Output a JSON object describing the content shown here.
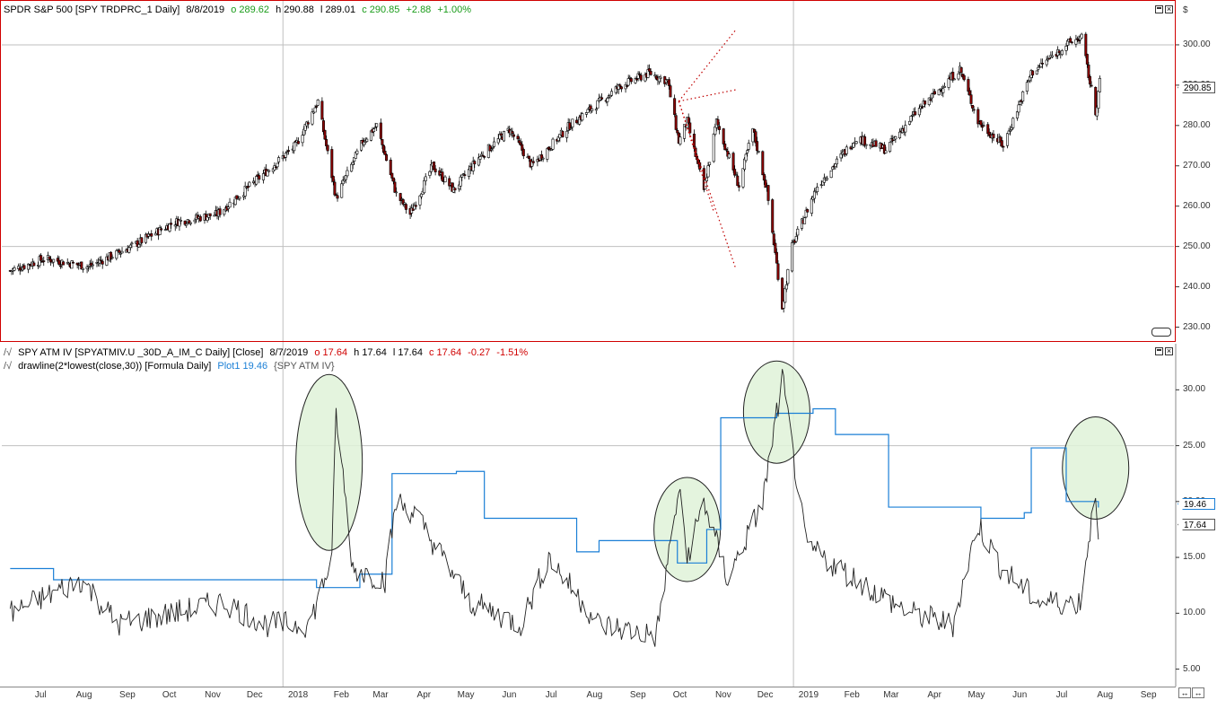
{
  "price_header": {
    "title": "SPDR S&P 500 [SPY TRDPRC_1 Daily]",
    "date": "8/8/2019",
    "open": "o 289.62",
    "high": "h 290.88",
    "low": "l 289.01",
    "close": "c 290.85",
    "change": "+2.88",
    "pct": "+1.00%"
  },
  "iv_header": {
    "title": "SPY ATM IV [SPYATMIV.U _30D_A_IM_C Daily] [Close]",
    "date": "8/7/2019",
    "open": "o 17.64",
    "high": "h 17.64",
    "low": "l 17.64",
    "close": "c 17.64",
    "change": "-0.27",
    "pct": "-1.51%"
  },
  "formula_header": {
    "title": "drawline(2*lowest(close,30)) [Formula Daily]",
    "plot_label": "Plot1 19.46",
    "source": "{SPY ATM IV}"
  },
  "price_axis": {
    "unit": "$",
    "ticks": [
      "300.00",
      "290.00",
      "280.00",
      "270.00",
      "260.00",
      "250.00",
      "240.00",
      "230.00"
    ],
    "last_value": "290.85"
  },
  "iv_axis": {
    "ticks": [
      "30.00",
      "25.00",
      "20.00",
      "15.00",
      "10.00",
      "5.00"
    ],
    "plot1_value": "19.46",
    "iv_value": "17.64"
  },
  "x_axis": {
    "labels": [
      "Jul",
      "Aug",
      "Sep",
      "Oct",
      "Nov",
      "Dec",
      "2018",
      "Feb",
      "Mar",
      "Apr",
      "May",
      "Jun",
      "Jul",
      "Aug",
      "Sep",
      "Oct",
      "Nov",
      "Dec",
      "2019",
      "Feb",
      "Mar",
      "Apr",
      "May",
      "Jun",
      "Jul",
      "Aug",
      "Sep"
    ]
  },
  "colors": {
    "up_candle": "#000000",
    "down_candle": "#8b0000",
    "iv_line": "#222222",
    "plot1_line": "#1a7fd6",
    "pane_border": "#d00000",
    "highlight_fill": "#dff2d8"
  },
  "chart_data": [
    {
      "type": "line",
      "title": "SPDR S&P 500 [SPY TRDPRC_1 Daily]",
      "ylabel": "$",
      "ylim": [
        227,
        308
      ],
      "x": [
        "2017-06-20",
        "2017-07-15",
        "2017-08-15",
        "2017-09-15",
        "2017-10-15",
        "2017-11-15",
        "2017-12-15",
        "2018-01-10",
        "2018-01-26",
        "2018-02-08",
        "2018-02-27",
        "2018-03-09",
        "2018-03-23",
        "2018-04-02",
        "2018-04-18",
        "2018-05-03",
        "2018-05-21",
        "2018-06-12",
        "2018-06-28",
        "2018-07-25",
        "2018-08-31",
        "2018-09-20",
        "2018-10-03",
        "2018-10-11",
        "2018-10-17",
        "2018-10-29",
        "2018-11-07",
        "2018-11-23",
        "2018-12-03",
        "2018-12-13",
        "2018-12-24",
        "2018-12-31",
        "2019-01-18",
        "2019-02-15",
        "2019-03-08",
        "2019-03-29",
        "2019-04-30",
        "2019-05-13",
        "2019-05-31",
        "2019-06-20",
        "2019-07-15",
        "2019-07-26",
        "2019-08-05",
        "2019-08-08"
      ],
      "values": [
        244,
        247,
        245,
        250,
        256,
        258,
        267,
        275,
        286,
        262,
        276,
        280,
        263,
        258,
        270,
        264,
        272,
        279,
        270,
        280,
        290,
        293,
        291,
        276,
        281,
        264,
        281,
        265,
        279,
        264,
        235,
        250,
        265,
        277,
        274,
        283,
        294,
        281,
        275,
        293,
        300,
        302,
        283,
        290.85
      ]
    },
    {
      "type": "line",
      "title": "SPY ATM IV [SPYATMIV.U _30D_A_IM_C Daily] [Close]",
      "ylim": [
        4,
        33
      ],
      "x": [
        "2017-06-20",
        "2017-08-10",
        "2017-09-05",
        "2017-10-15",
        "2017-11-20",
        "2017-12-20",
        "2018-01-20",
        "2018-02-05",
        "2018-02-08",
        "2018-02-20",
        "2018-03-15",
        "2018-03-23",
        "2018-04-05",
        "2018-05-15",
        "2018-06-20",
        "2018-07-10",
        "2018-08-15",
        "2018-09-25",
        "2018-10-11",
        "2018-10-17",
        "2018-10-29",
        "2018-11-15",
        "2018-12-10",
        "2018-12-24",
        "2019-01-10",
        "2019-02-15",
        "2019-03-25",
        "2019-04-25",
        "2019-05-13",
        "2019-05-30",
        "2019-06-25",
        "2019-07-25",
        "2019-08-05",
        "2019-08-07"
      ],
      "values": [
        10,
        13,
        9,
        10,
        11,
        9,
        9,
        15,
        28,
        14,
        13,
        20,
        19,
        11,
        9,
        15,
        9,
        8,
        21,
        15,
        20,
        13,
        20,
        31,
        16,
        13,
        10,
        9,
        18,
        14,
        11,
        11,
        21,
        17.64
      ]
    },
    {
      "type": "line",
      "title": "drawline(2*lowest(close,30))",
      "ylim": [
        4,
        33
      ],
      "x": [
        "2017-06-20",
        "2017-07-20",
        "2017-07-21",
        "2018-01-25",
        "2018-02-25",
        "2018-03-20",
        "2018-05-05",
        "2018-05-25",
        "2018-07-30",
        "2018-08-15",
        "2018-10-10",
        "2018-10-31",
        "2018-11-10",
        "2018-12-20",
        "2019-01-15",
        "2019-01-31",
        "2019-03-10",
        "2019-05-15",
        "2019-06-15",
        "2019-06-20",
        "2019-07-15",
        "2019-08-07"
      ],
      "values": [
        14,
        14,
        13,
        12.3,
        13.5,
        22.5,
        22.7,
        18.5,
        15.5,
        16.5,
        14.5,
        17.5,
        27.5,
        27.9,
        28.3,
        26,
        19.5,
        18.5,
        19,
        24.8,
        20,
        19.46
      ]
    }
  ]
}
